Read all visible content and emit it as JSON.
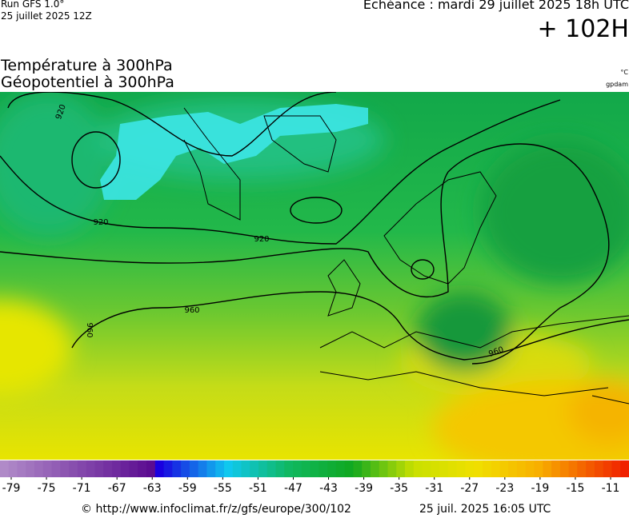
{
  "header": {
    "run": "Run GFS 1.0°",
    "run_date": "25 juillet 2025 12Z",
    "valid": "Echéance : mardi 29 juillet 2025 18h UTC",
    "lead": "+ 102H"
  },
  "titles": {
    "temperature": "Température à 300hPa",
    "geopotential": "Géopotentiel à 300hPa",
    "unit_temperature": "°C",
    "unit_geopotential": "gpdam"
  },
  "map": {
    "contour_labels": [
      "920",
      "920",
      "920",
      "960",
      "960",
      "960"
    ]
  },
  "colorbar": {
    "ticks": [
      -79,
      -75,
      -71,
      -67,
      -63,
      -59,
      -55,
      -51,
      -47,
      -43,
      -39,
      -35,
      -31,
      -27,
      -23,
      -19,
      -15,
      -11
    ]
  },
  "footer": {
    "url": "© http://www.infoclimat.fr/z/gfs/europe/300/102",
    "generated": "25 juil. 2025 16:05 UTC"
  }
}
